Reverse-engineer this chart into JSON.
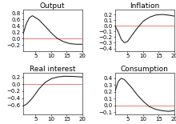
{
  "titles": [
    "Output",
    "Inflation",
    "Real interest",
    "Consumption"
  ],
  "xlim": [
    1,
    20
  ],
  "x_ticks": [
    5,
    10,
    15,
    20
  ],
  "panels": {
    "Output": {
      "ylim": [
        -0.4,
        0.9
      ],
      "yticks": [
        -0.2,
        0.0,
        0.2,
        0.4,
        0.6,
        0.8
      ]
    },
    "Inflation": {
      "ylim": [
        -0.45,
        0.28
      ],
      "yticks": [
        -0.4,
        -0.3,
        -0.2,
        -0.1,
        0.0,
        0.1,
        0.2
      ]
    },
    "Real interest": {
      "ylim": [
        -0.85,
        0.32
      ],
      "yticks": [
        -0.6,
        -0.4,
        -0.2,
        0.0,
        0.2
      ]
    },
    "Consumption": {
      "ylim": [
        -0.13,
        0.48
      ],
      "yticks": [
        -0.1,
        0.0,
        0.1,
        0.2,
        0.3,
        0.4
      ]
    }
  },
  "ctrl_output_t": [
    1,
    2,
    3,
    4,
    6,
    8,
    10,
    12,
    14,
    16,
    18,
    20
  ],
  "ctrl_output_y": [
    0.12,
    0.45,
    0.65,
    0.72,
    0.6,
    0.4,
    0.18,
    0.0,
    -0.1,
    -0.16,
    -0.18,
    -0.18
  ],
  "ctrl_infl_t": [
    1,
    2,
    3,
    4,
    5,
    6,
    8,
    10,
    12,
    14,
    16,
    18,
    20
  ],
  "ctrl_infl_y": [
    0.0,
    -0.1,
    -0.24,
    -0.3,
    -0.28,
    -0.2,
    -0.05,
    0.08,
    0.15,
    0.19,
    0.2,
    0.19,
    0.17
  ],
  "ctrl_ri_t": [
    1,
    2,
    3,
    4,
    5,
    6,
    8,
    10,
    12,
    14,
    16,
    18,
    20
  ],
  "ctrl_ri_y": [
    -0.62,
    -0.58,
    -0.5,
    -0.4,
    -0.28,
    -0.15,
    0.04,
    0.15,
    0.2,
    0.22,
    0.22,
    0.21,
    0.2
  ],
  "ctrl_cons_t": [
    1,
    2,
    3,
    4,
    6,
    8,
    10,
    12,
    14,
    16,
    18,
    20
  ],
  "ctrl_cons_y": [
    0.2,
    0.35,
    0.4,
    0.38,
    0.28,
    0.16,
    0.06,
    -0.02,
    -0.06,
    -0.08,
    -0.09,
    -0.08
  ],
  "line_color": "#1a1a1a",
  "zero_line_color": "#f08080",
  "background": "#ffffff",
  "title_fontsize": 6.5,
  "tick_fontsize": 5.0,
  "linewidth": 0.75,
  "zero_linewidth": 0.75
}
